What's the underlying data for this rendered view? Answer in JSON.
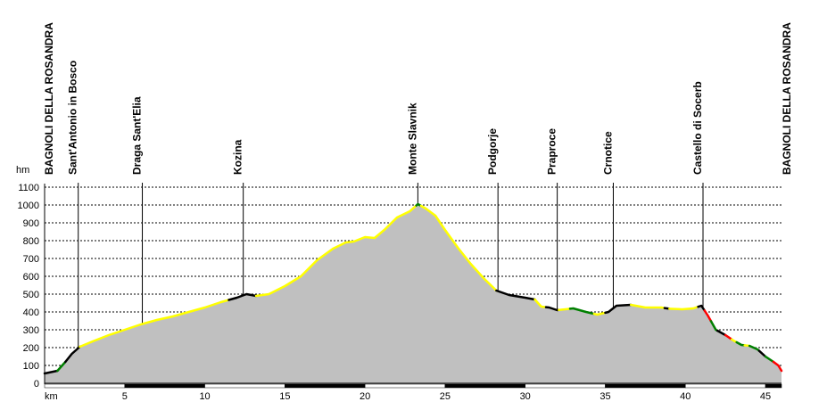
{
  "chart_data": {
    "type": "area",
    "ylabel": "hm",
    "xlabel": "km",
    "xlim": [
      0,
      46
    ],
    "ylim": [
      0,
      1100
    ],
    "yticks": [
      0,
      100,
      200,
      300,
      400,
      500,
      600,
      700,
      800,
      900,
      1000,
      1100
    ],
    "xticks": [
      5,
      10,
      15,
      20,
      25,
      30,
      35,
      40,
      45
    ],
    "grid": true,
    "fill_color": "#c0c0c0",
    "waypoints": [
      {
        "name": "BAGNOLI DELLA ROSANDRA",
        "km": 0
      },
      {
        "name": "Sant'Antonio in Bosco",
        "km": 2.1
      },
      {
        "name": "Draga Sant'Elia",
        "km": 6.1
      },
      {
        "name": "Kozina",
        "km": 12.4
      },
      {
        "name": "Monte Slavnik",
        "km": 23.3
      },
      {
        "name": "Podgorje",
        "km": 28.3
      },
      {
        "name": "Praproce",
        "km": 32.0
      },
      {
        "name": "Crnotice",
        "km": 35.5
      },
      {
        "name": "Castello di Socerb",
        "km": 41.1
      },
      {
        "name": "BAGNOLI DELLA ROSANDRA",
        "km": 46.0
      }
    ],
    "x": [
      0,
      0.8,
      1.3,
      1.7,
      2.2,
      3,
      4,
      5,
      6,
      7,
      8,
      9,
      10,
      11,
      12,
      12.6,
      13.2,
      14,
      15,
      16,
      17,
      18,
      18.8,
      19.3,
      20,
      20.6,
      21.2,
      22,
      22.8,
      23.3,
      23.8,
      24.4,
      25,
      25.8,
      26.6,
      27.4,
      28.2,
      29,
      30,
      30.6,
      31,
      31.5,
      32,
      33,
      33.8,
      34.5,
      35.2,
      35.7,
      36.6,
      37.5,
      38.5,
      39,
      39.8,
      40.5,
      41,
      41.4,
      41.9,
      42.5,
      43,
      43.5,
      44,
      44.5,
      45,
      45.5,
      45.8,
      46
    ],
    "y": [
      55,
      70,
      120,
      165,
      205,
      235,
      270,
      300,
      330,
      355,
      375,
      400,
      425,
      455,
      480,
      500,
      490,
      500,
      545,
      600,
      690,
      755,
      790,
      795,
      820,
      815,
      860,
      930,
      965,
      1005,
      980,
      940,
      860,
      760,
      670,
      590,
      520,
      495,
      480,
      470,
      430,
      425,
      410,
      420,
      400,
      385,
      400,
      435,
      440,
      425,
      425,
      418,
      415,
      420,
      435,
      380,
      300,
      270,
      240,
      215,
      210,
      190,
      150,
      120,
      100,
      70
    ],
    "segments": [
      {
        "from": 0,
        "to": 0.8,
        "color": "#000000"
      },
      {
        "from": 0.8,
        "to": 1.3,
        "color": "#008000"
      },
      {
        "from": 1.3,
        "to": 2.2,
        "color": "#000000"
      },
      {
        "from": 2.2,
        "to": 11.5,
        "color": "#ffff00"
      },
      {
        "from": 11.5,
        "to": 13.2,
        "color": "#000000"
      },
      {
        "from": 13.2,
        "to": 23.2,
        "color": "#ffff00"
      },
      {
        "from": 23.2,
        "to": 23.5,
        "color": "#008000"
      },
      {
        "from": 23.5,
        "to": 28.2,
        "color": "#ffff00"
      },
      {
        "from": 28.2,
        "to": 30.6,
        "color": "#000000"
      },
      {
        "from": 30.6,
        "to": 31.3,
        "color": "#ffff00"
      },
      {
        "from": 31.3,
        "to": 32.1,
        "color": "#000000"
      },
      {
        "from": 32.1,
        "to": 32.8,
        "color": "#ffff00"
      },
      {
        "from": 32.8,
        "to": 34.3,
        "color": "#008000"
      },
      {
        "from": 34.3,
        "to": 35.0,
        "color": "#ffff00"
      },
      {
        "from": 35.0,
        "to": 36.6,
        "color": "#000000"
      },
      {
        "from": 36.6,
        "to": 38.7,
        "color": "#ffff00"
      },
      {
        "from": 38.7,
        "to": 39.0,
        "color": "#000000"
      },
      {
        "from": 39.0,
        "to": 40.8,
        "color": "#ffff00"
      },
      {
        "from": 40.8,
        "to": 41.2,
        "color": "#000000"
      },
      {
        "from": 41.2,
        "to": 41.6,
        "color": "#ff0000"
      },
      {
        "from": 41.6,
        "to": 42.0,
        "color": "#008000"
      },
      {
        "from": 42.0,
        "to": 42.5,
        "color": "#000000"
      },
      {
        "from": 42.5,
        "to": 42.9,
        "color": "#ff0000"
      },
      {
        "from": 42.9,
        "to": 43.2,
        "color": "#ffff00"
      },
      {
        "from": 43.2,
        "to": 43.7,
        "color": "#008000"
      },
      {
        "from": 43.7,
        "to": 44.0,
        "color": "#ffff00"
      },
      {
        "from": 44.0,
        "to": 44.6,
        "color": "#008000"
      },
      {
        "from": 44.6,
        "to": 45.0,
        "color": "#000000"
      },
      {
        "from": 45.0,
        "to": 45.5,
        "color": "#008000"
      },
      {
        "from": 45.5,
        "to": 46.0,
        "color": "#ff0000"
      }
    ]
  }
}
